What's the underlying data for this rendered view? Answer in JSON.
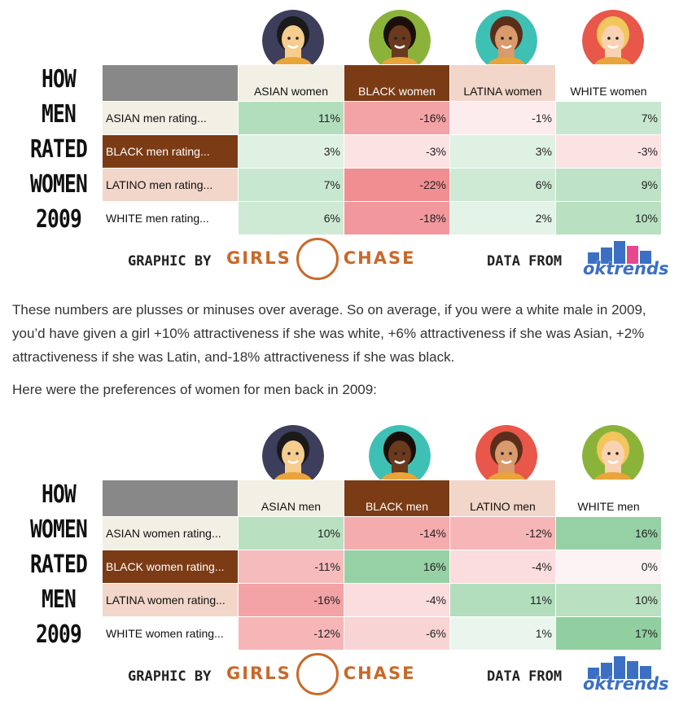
{
  "paragraph": "These numbers are plusses or minuses over average. So on average, if you were a white male in 2009, you’d have given a girl +10% attractiveness if she was white, +6% attractiveness if she was Asian, +2% attractiveness if she was Latin, and-18% attractiveness if she was black.",
  "paragraph2": "Here were the preferences of women for men back in 2009:",
  "credits": {
    "graphic_by": "GRAPHIC BY",
    "girls": "GIRLS",
    "chase": "CHASE",
    "data_from": "DATA FROM",
    "oktrends": "oktrends"
  },
  "chart_data": [
    {
      "type": "table",
      "title_lines": [
        "HOW",
        "MEN",
        "RATED",
        "WOMEN",
        "2009"
      ],
      "columns": [
        "ASIAN women",
        "BLACK women",
        "LATINA women",
        "WHITE women"
      ],
      "rows": [
        "ASIAN men rating...",
        "BLACK men rating...",
        "LATINO men rating...",
        "WHITE men rating..."
      ],
      "values": [
        [
          11,
          -16,
          -1,
          7
        ],
        [
          3,
          -3,
          3,
          -3
        ],
        [
          7,
          -22,
          6,
          9
        ],
        [
          6,
          -18,
          2,
          10
        ]
      ],
      "unit": "%"
    },
    {
      "type": "table",
      "title_lines": [
        "HOW",
        "WOMEN",
        "RATED",
        "MEN",
        "2009"
      ],
      "columns": [
        "ASIAN men",
        "BLACK men",
        "LATINO men",
        "WHITE men"
      ],
      "rows": [
        "ASIAN women rating...",
        "BLACK women rating...",
        "LATINA women rating...",
        "WHITE women rating..."
      ],
      "values": [
        [
          10,
          -14,
          -12,
          16
        ],
        [
          -11,
          16,
          -4,
          0
        ],
        [
          -16,
          -4,
          11,
          10
        ],
        [
          -12,
          -6,
          1,
          17
        ]
      ],
      "unit": "%"
    }
  ],
  "colors": {
    "header_bg": [
      "#f2efe4",
      "#7b3b15",
      "#f2d6c9",
      "#ffffff"
    ],
    "header_fg": [
      "#111111",
      "#ffffff",
      "#111111",
      "#111111"
    ],
    "avatar_bg": [
      "#3d3d5c",
      "#8bb33a",
      "#3fc0b5",
      "#e8574a"
    ],
    "avatar_bg2": [
      "#3d3d5c",
      "#3fc0b5",
      "#e8574a",
      "#8bb33a"
    ],
    "corner": "#888888",
    "positive": "#7cc68e",
    "negative": "#f08b8f",
    "ok_bars": [
      "#3b6fc4",
      "#3b6fc4",
      "#3b6fc4",
      "#e8478c",
      "#3b6fc4",
      "#3b6fc4"
    ]
  },
  "icons": {
    "avatars_1": [
      "asian-woman-icon",
      "black-woman-icon",
      "latina-woman-icon",
      "white-woman-icon"
    ],
    "avatars_2": [
      "asian-man-icon",
      "black-man-icon",
      "latino-man-icon",
      "white-man-icon"
    ]
  }
}
